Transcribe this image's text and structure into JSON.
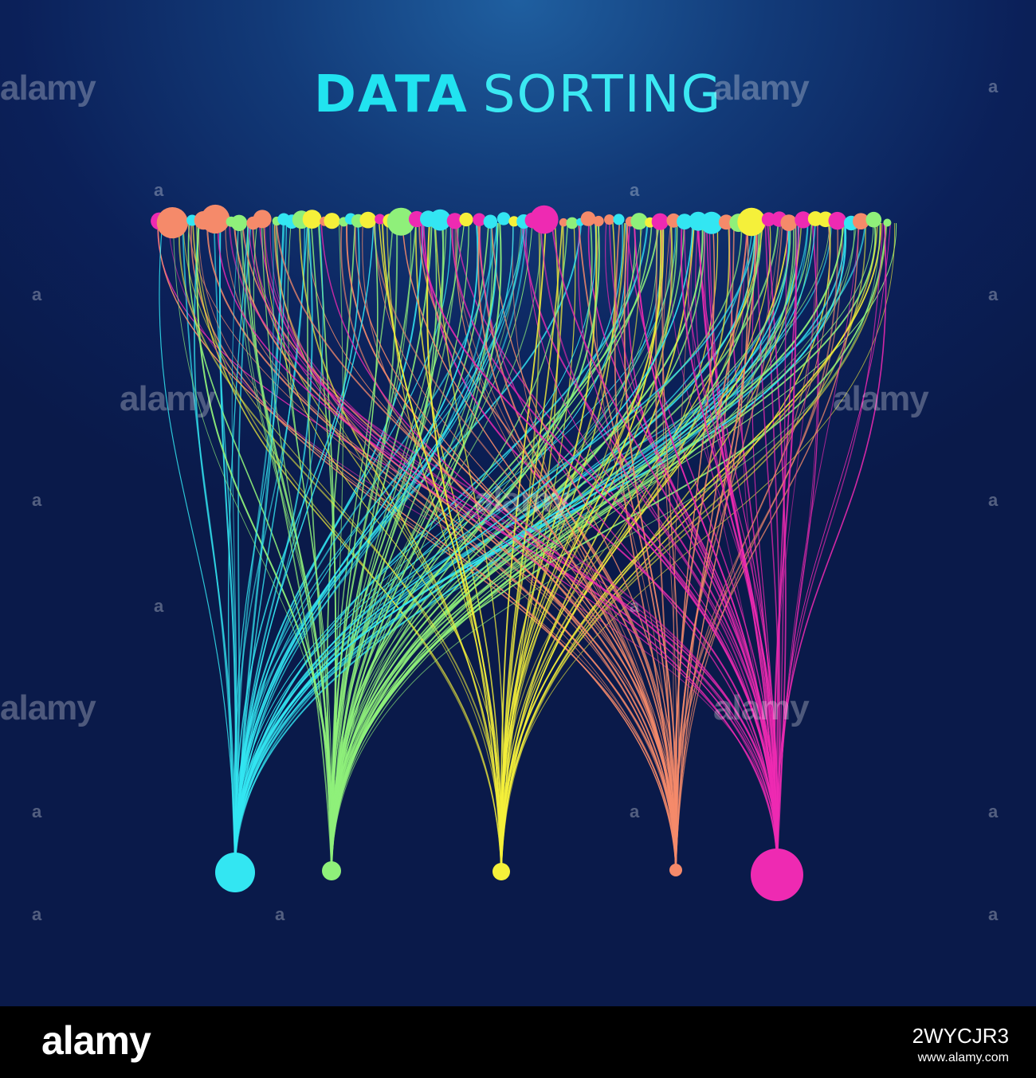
{
  "title": {
    "bold": "DATA",
    "light": "SORTING"
  },
  "watermark": "alamy",
  "watermark_small": "a",
  "footer": {
    "logo": "alamy",
    "image_id": "2WYCJR3",
    "url": "www.alamy.com"
  },
  "colors": {
    "background": "#0b2059",
    "title": "#21e3f0",
    "groups": [
      "#33e6f2",
      "#8ff07a",
      "#f5f03a",
      "#f58a6a",
      "#ee2ab2"
    ]
  },
  "sort_groups": [
    {
      "color": "cyan",
      "hex": "#33e6f2"
    },
    {
      "color": "green",
      "hex": "#8ff07a"
    },
    {
      "color": "yellow",
      "hex": "#f5f03a"
    },
    {
      "color": "salmon",
      "hex": "#f58a6a"
    },
    {
      "color": "magenta",
      "hex": "#ee2ab2"
    }
  ]
}
